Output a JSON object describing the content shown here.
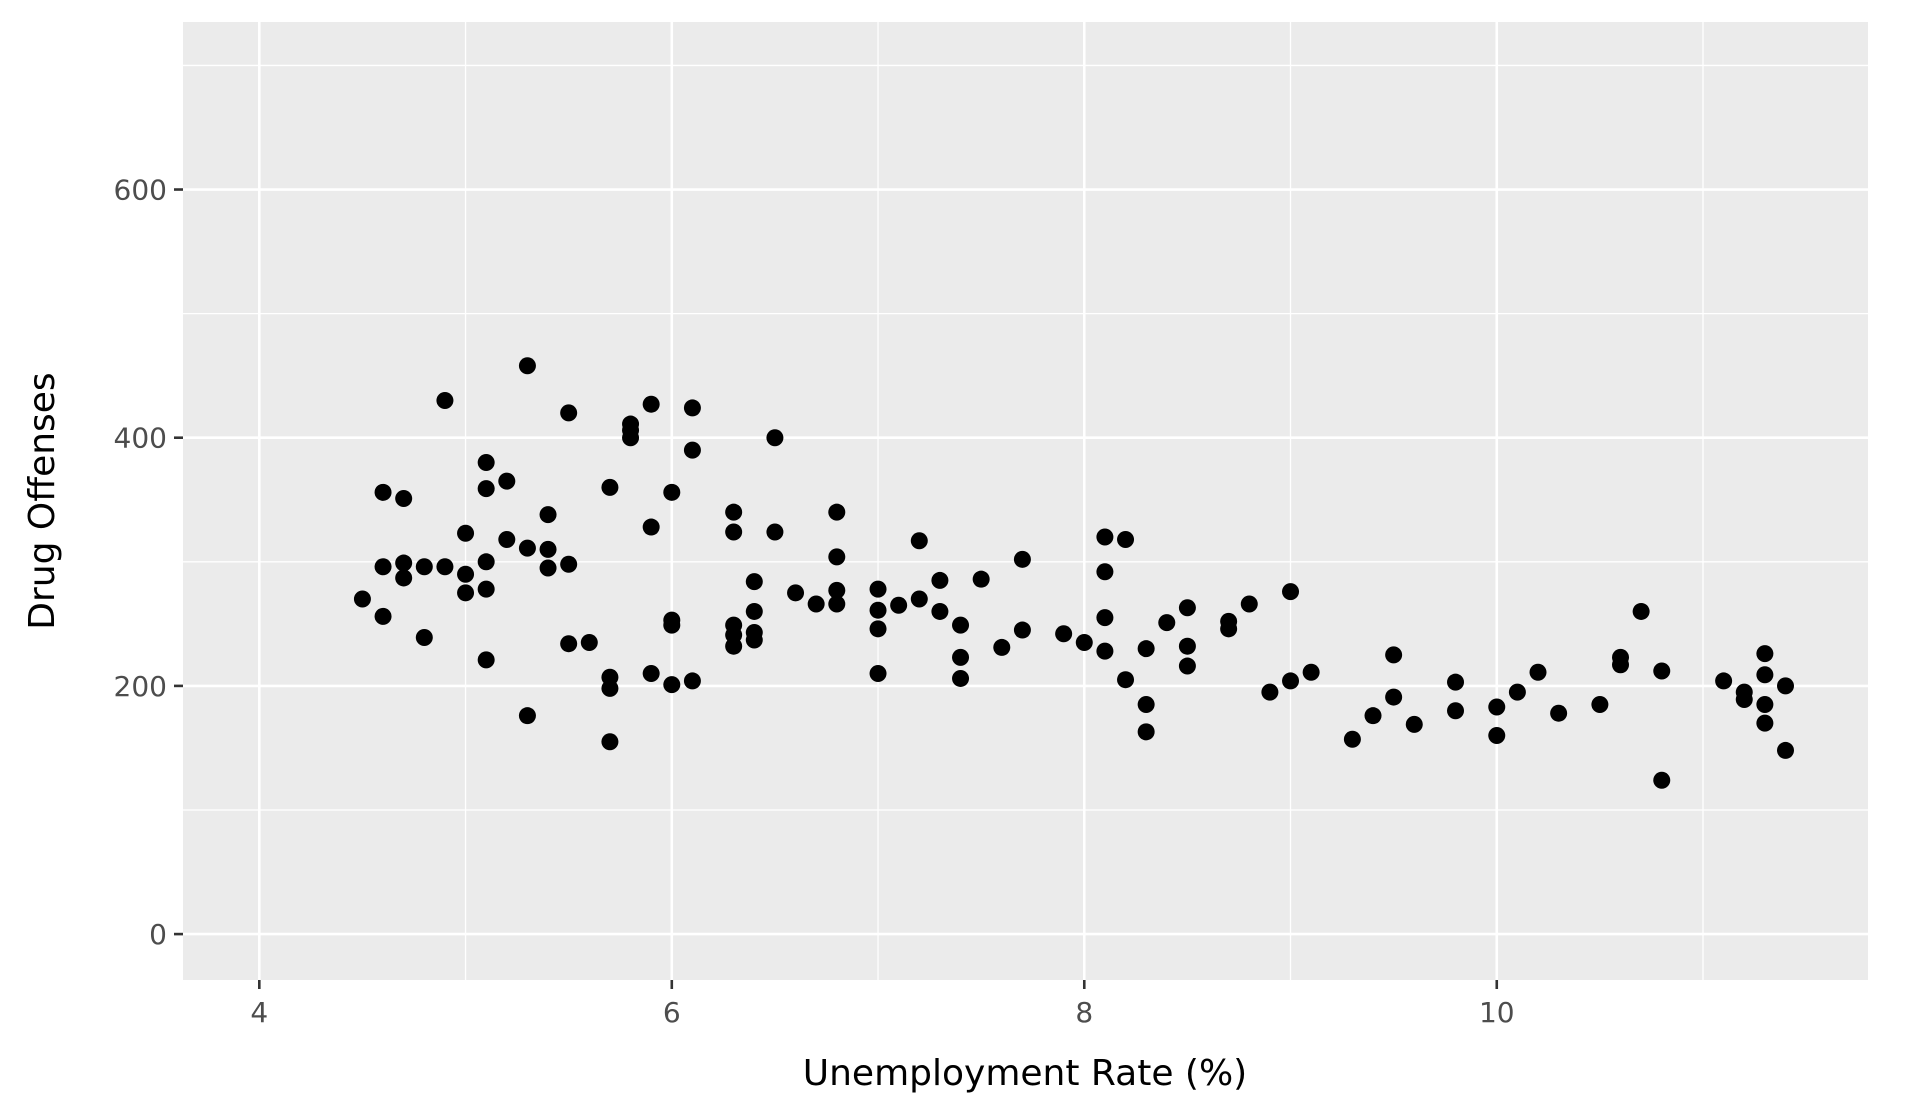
{
  "chart_data": {
    "type": "scatter",
    "title": "",
    "xlabel": "Unemployment Rate (%)",
    "ylabel": "Drug Offenses",
    "xlim": [
      3.63,
      11.8
    ],
    "ylim": [
      -37,
      735
    ],
    "x_ticks": [
      4,
      6,
      8,
      10
    ],
    "x_tick_labels": [
      "4",
      "6",
      "8",
      "10"
    ],
    "y_ticks": [
      0,
      200,
      400,
      600
    ],
    "y_tick_labels": [
      "0",
      "200",
      "400",
      "600"
    ],
    "grid": true,
    "legend": "none",
    "colors": {
      "panel": "#ebebeb",
      "grid": "#ffffff",
      "point": "#000000",
      "tick": "#4d4d4d"
    },
    "points": [
      [
        4.5,
        270
      ],
      [
        4.6,
        356
      ],
      [
        4.6,
        296
      ],
      [
        4.6,
        256
      ],
      [
        4.7,
        351
      ],
      [
        4.7,
        299
      ],
      [
        4.7,
        287
      ],
      [
        4.8,
        296
      ],
      [
        4.8,
        239
      ],
      [
        4.9,
        430
      ],
      [
        4.9,
        296
      ],
      [
        5.0,
        323
      ],
      [
        5.0,
        290
      ],
      [
        5.0,
        275
      ],
      [
        5.1,
        380
      ],
      [
        5.1,
        359
      ],
      [
        5.1,
        300
      ],
      [
        5.1,
        278
      ],
      [
        5.1,
        221
      ],
      [
        5.2,
        365
      ],
      [
        5.2,
        318
      ],
      [
        5.3,
        458
      ],
      [
        5.3,
        311
      ],
      [
        5.3,
        176
      ],
      [
        5.4,
        338
      ],
      [
        5.4,
        310
      ],
      [
        5.4,
        295
      ],
      [
        5.5,
        420
      ],
      [
        5.5,
        298
      ],
      [
        5.5,
        234
      ],
      [
        5.6,
        235
      ],
      [
        5.7,
        360
      ],
      [
        5.7,
        207
      ],
      [
        5.7,
        198
      ],
      [
        5.7,
        155
      ],
      [
        5.8,
        411
      ],
      [
        5.8,
        406
      ],
      [
        5.8,
        400
      ],
      [
        5.9,
        427
      ],
      [
        5.9,
        328
      ],
      [
        5.9,
        210
      ],
      [
        6.0,
        356
      ],
      [
        6.0,
        253
      ],
      [
        6.0,
        249
      ],
      [
        6.0,
        201
      ],
      [
        6.1,
        424
      ],
      [
        6.1,
        390
      ],
      [
        6.1,
        204
      ],
      [
        6.3,
        340
      ],
      [
        6.3,
        324
      ],
      [
        6.3,
        249
      ],
      [
        6.3,
        241
      ],
      [
        6.3,
        232
      ],
      [
        6.4,
        284
      ],
      [
        6.4,
        260
      ],
      [
        6.4,
        243
      ],
      [
        6.4,
        237
      ],
      [
        6.5,
        400
      ],
      [
        6.5,
        324
      ],
      [
        6.6,
        275
      ],
      [
        6.7,
        266
      ],
      [
        6.8,
        340
      ],
      [
        6.8,
        304
      ],
      [
        6.8,
        277
      ],
      [
        6.8,
        266
      ],
      [
        7.0,
        278
      ],
      [
        7.0,
        261
      ],
      [
        7.0,
        246
      ],
      [
        7.0,
        210
      ],
      [
        7.1,
        265
      ],
      [
        7.2,
        317
      ],
      [
        7.2,
        270
      ],
      [
        7.3,
        285
      ],
      [
        7.3,
        260
      ],
      [
        7.4,
        249
      ],
      [
        7.4,
        223
      ],
      [
        7.4,
        206
      ],
      [
        7.5,
        286
      ],
      [
        7.6,
        231
      ],
      [
        7.7,
        302
      ],
      [
        7.7,
        245
      ],
      [
        7.9,
        242
      ],
      [
        8.0,
        235
      ],
      [
        8.1,
        320
      ],
      [
        8.1,
        292
      ],
      [
        8.1,
        255
      ],
      [
        8.1,
        228
      ],
      [
        8.2,
        318
      ],
      [
        8.2,
        205
      ],
      [
        8.3,
        230
      ],
      [
        8.3,
        185
      ],
      [
        8.3,
        163
      ],
      [
        8.4,
        251
      ],
      [
        8.5,
        263
      ],
      [
        8.5,
        232
      ],
      [
        8.5,
        216
      ],
      [
        8.7,
        252
      ],
      [
        8.7,
        246
      ],
      [
        8.8,
        266
      ],
      [
        8.9,
        195
      ],
      [
        9.0,
        276
      ],
      [
        9.0,
        204
      ],
      [
        9.1,
        211
      ],
      [
        9.3,
        157
      ],
      [
        9.4,
        176
      ],
      [
        9.5,
        225
      ],
      [
        9.5,
        191
      ],
      [
        9.6,
        169
      ],
      [
        9.8,
        203
      ],
      [
        9.8,
        180
      ],
      [
        10.0,
        183
      ],
      [
        10.0,
        160
      ],
      [
        10.1,
        195
      ],
      [
        10.2,
        211
      ],
      [
        10.3,
        178
      ],
      [
        10.5,
        185
      ],
      [
        10.6,
        223
      ],
      [
        10.6,
        217
      ],
      [
        10.7,
        260
      ],
      [
        10.8,
        212
      ],
      [
        10.8,
        124
      ],
      [
        11.1,
        204
      ],
      [
        11.2,
        195
      ],
      [
        11.2,
        189
      ],
      [
        11.3,
        226
      ],
      [
        11.3,
        209
      ],
      [
        11.3,
        185
      ],
      [
        11.3,
        170
      ],
      [
        11.4,
        200
      ],
      [
        11.4,
        148
      ]
    ]
  }
}
